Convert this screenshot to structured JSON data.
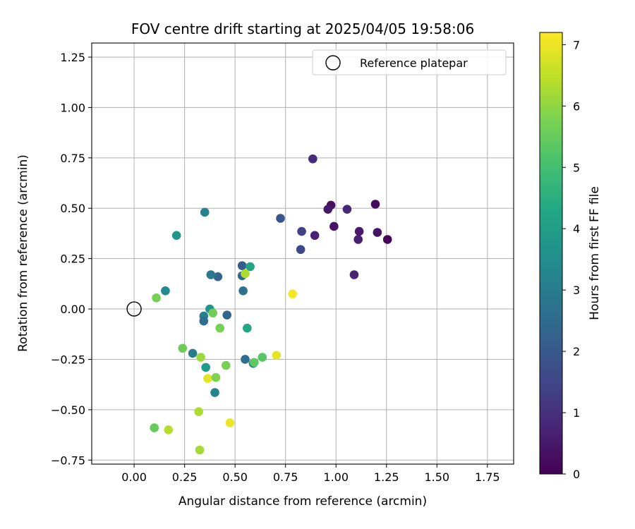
{
  "chart_data": {
    "type": "scatter",
    "title": "FOV centre drift starting at 2025/04/05 19:58:06",
    "xlabel": "Angular distance from reference (arcmin)",
    "ylabel": "Rotation from reference (arcmin)",
    "xlim": [
      -0.21,
      1.88
    ],
    "ylim": [
      -0.77,
      1.32
    ],
    "xticks": [
      0.0,
      0.25,
      0.5,
      0.75,
      1.0,
      1.25,
      1.5,
      1.75
    ],
    "xtick_labels": [
      "0.00",
      "0.25",
      "0.50",
      "0.75",
      "1.00",
      "1.25",
      "1.50",
      "1.75"
    ],
    "yticks": [
      -0.75,
      -0.5,
      -0.25,
      0.0,
      0.25,
      0.5,
      0.75,
      1.0,
      1.25
    ],
    "ytick_labels": [
      "−0.75",
      "−0.50",
      "−0.25",
      "0.00",
      "0.25",
      "0.50",
      "0.75",
      "1.00",
      "1.25"
    ],
    "grid": true,
    "legend": {
      "placement": "top-right",
      "entries": [
        "Reference platepar"
      ]
    },
    "reference_point": {
      "x": 0.0,
      "y": 0.0
    },
    "colorbar": {
      "label": "Hours from first FF file",
      "range": [
        0,
        7.2
      ],
      "ticks": [
        0,
        1,
        2,
        3,
        4,
        5,
        6,
        7
      ],
      "tick_labels": [
        "0",
        "1",
        "2",
        "3",
        "4",
        "5",
        "6",
        "7"
      ],
      "colormap": "viridis"
    },
    "points": [
      {
        "x": 1.255,
        "y": 0.345,
        "c": 0.1
      },
      {
        "x": 1.195,
        "y": 0.52,
        "c": 0.2
      },
      {
        "x": 1.205,
        "y": 0.38,
        "c": 0.4
      },
      {
        "x": 1.115,
        "y": 0.385,
        "c": 0.5
      },
      {
        "x": 1.11,
        "y": 0.345,
        "c": 0.6
      },
      {
        "x": 1.09,
        "y": 0.17,
        "c": 0.7
      },
      {
        "x": 1.055,
        "y": 0.495,
        "c": 0.8
      },
      {
        "x": 0.99,
        "y": 0.41,
        "c": 0.4
      },
      {
        "x": 0.975,
        "y": 0.515,
        "c": 0.3
      },
      {
        "x": 0.96,
        "y": 0.495,
        "c": 0.5
      },
      {
        "x": 0.895,
        "y": 0.365,
        "c": 0.7
      },
      {
        "x": 0.885,
        "y": 0.745,
        "c": 0.9
      },
      {
        "x": 0.83,
        "y": 0.385,
        "c": 1.4
      },
      {
        "x": 0.825,
        "y": 0.295,
        "c": 1.6
      },
      {
        "x": 0.725,
        "y": 0.45,
        "c": 1.9
      },
      {
        "x": 0.535,
        "y": 0.215,
        "c": 2.1
      },
      {
        "x": 0.535,
        "y": 0.165,
        "c": 2.4
      },
      {
        "x": 0.54,
        "y": 0.09,
        "c": 2.7
      },
      {
        "x": 0.415,
        "y": 0.16,
        "c": 2.3
      },
      {
        "x": 0.38,
        "y": 0.17,
        "c": 2.9
      },
      {
        "x": 0.35,
        "y": 0.48,
        "c": 3.2
      },
      {
        "x": 0.155,
        "y": 0.09,
        "c": 3.4
      },
      {
        "x": 0.21,
        "y": 0.365,
        "c": 3.8
      },
      {
        "x": 0.575,
        "y": 0.21,
        "c": 4.2
      },
      {
        "x": 0.55,
        "y": 0.175,
        "c": 6.3
      },
      {
        "x": 0.46,
        "y": -0.03,
        "c": 2.4
      },
      {
        "x": 0.375,
        "y": 0.0,
        "c": 3.7
      },
      {
        "x": 0.39,
        "y": -0.02,
        "c": 5.6
      },
      {
        "x": 0.345,
        "y": -0.035,
        "c": 3.1
      },
      {
        "x": 0.345,
        "y": -0.06,
        "c": 2.6
      },
      {
        "x": 0.11,
        "y": 0.055,
        "c": 5.7
      },
      {
        "x": 0.425,
        "y": -0.095,
        "c": 5.7
      },
      {
        "x": 0.56,
        "y": -0.095,
        "c": 4.3
      },
      {
        "x": 0.55,
        "y": -0.25,
        "c": 2.6
      },
      {
        "x": 0.59,
        "y": -0.27,
        "c": 3.3
      },
      {
        "x": 0.595,
        "y": -0.265,
        "c": 5.4
      },
      {
        "x": 0.635,
        "y": -0.24,
        "c": 5.3
      },
      {
        "x": 0.705,
        "y": -0.23,
        "c": 6.9
      },
      {
        "x": 0.785,
        "y": 0.075,
        "c": 7.1
      },
      {
        "x": 0.24,
        "y": -0.195,
        "c": 5.6
      },
      {
        "x": 0.29,
        "y": -0.22,
        "c": 3.0
      },
      {
        "x": 0.33,
        "y": -0.24,
        "c": 6.1
      },
      {
        "x": 0.355,
        "y": -0.29,
        "c": 3.9
      },
      {
        "x": 0.455,
        "y": -0.28,
        "c": 5.7
      },
      {
        "x": 0.365,
        "y": -0.345,
        "c": 6.9
      },
      {
        "x": 0.405,
        "y": -0.34,
        "c": 5.8
      },
      {
        "x": 0.4,
        "y": -0.415,
        "c": 3.2
      },
      {
        "x": 0.32,
        "y": -0.51,
        "c": 6.3
      },
      {
        "x": 0.475,
        "y": -0.565,
        "c": 7.0
      },
      {
        "x": 0.1,
        "y": -0.59,
        "c": 5.5
      },
      {
        "x": 0.17,
        "y": -0.6,
        "c": 6.4
      },
      {
        "x": 0.325,
        "y": -0.7,
        "c": 6.2
      }
    ]
  }
}
